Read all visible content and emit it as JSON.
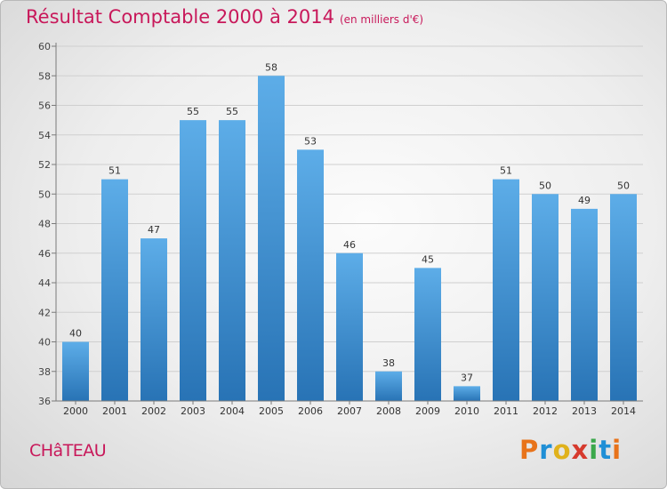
{
  "header": {
    "title": "Résultat Comptable 2000 à 2014",
    "subtitle": "(en milliers d'€)"
  },
  "footer": {
    "place": "CHâTEAU",
    "brand": "Proxiti"
  },
  "colors": {
    "accent": "#c8185a",
    "bar_top": "#5dade8",
    "bar_bottom": "#2873b5",
    "grid": "#cfcfcf"
  },
  "chart_data": {
    "type": "bar",
    "title": "Résultat Comptable 2000 à 2014",
    "subtitle": "(en milliers d'€)",
    "xlabel": "",
    "ylabel": "",
    "categories": [
      "2000",
      "2001",
      "2002",
      "2003",
      "2004",
      "2005",
      "2006",
      "2007",
      "2008",
      "2009",
      "2010",
      "2011",
      "2012",
      "2013",
      "2014"
    ],
    "values": [
      40,
      51,
      47,
      55,
      55,
      58,
      53,
      46,
      38,
      45,
      37,
      51,
      50,
      49,
      50
    ],
    "ylim": [
      36,
      60
    ],
    "yticks": [
      36,
      38,
      40,
      42,
      44,
      46,
      48,
      50,
      52,
      54,
      56,
      58,
      60
    ],
    "grid": true,
    "data_labels": true
  }
}
